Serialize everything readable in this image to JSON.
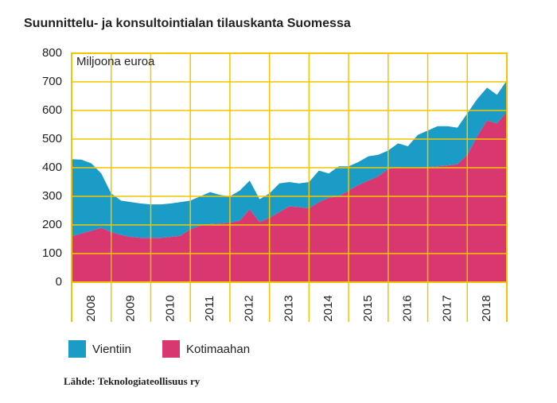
{
  "chart_data": {
    "type": "stacked-area",
    "title": "Suunnittelu- ja konsultointialan tilauskanta Suomessa",
    "y_label": "Miljoona euroa",
    "source": "Lähde: Teknologiateollisuus ry",
    "x": [
      2008,
      2008.25,
      2008.5,
      2008.75,
      2009,
      2009.25,
      2009.5,
      2009.75,
      2010,
      2010.25,
      2010.5,
      2010.75,
      2011,
      2011.25,
      2011.5,
      2011.75,
      2012,
      2012.25,
      2012.5,
      2012.75,
      2013,
      2013.25,
      2013.5,
      2013.75,
      2014,
      2014.25,
      2014.5,
      2014.75,
      2015,
      2015.25,
      2015.5,
      2015.75,
      2016,
      2016.25,
      2016.5,
      2016.75,
      2017,
      2017.25,
      2017.5,
      2017.75,
      2018,
      2018.25,
      2018.5,
      2018.75,
      2019
    ],
    "series": [
      {
        "name": "Vientiin",
        "color": "#1a9cc6",
        "values": [
          270,
          258,
          235,
          190,
          135,
          120,
          122,
          120,
          117,
          117,
          117,
          118,
          100,
          102,
          112,
          100,
          92,
          105,
          100,
          80,
          85,
          100,
          85,
          83,
          92,
          110,
          85,
          105,
          85,
          80,
          85,
          75,
          65,
          83,
          75,
          115,
          128,
          140,
          137,
          128,
          145,
          130,
          115,
          100,
          110
        ]
      },
      {
        "name": "Kotimaahan",
        "color": "#d8386f",
        "values": [
          160,
          170,
          180,
          190,
          175,
          165,
          158,
          155,
          155,
          155,
          158,
          162,
          185,
          198,
          203,
          205,
          208,
          215,
          255,
          210,
          225,
          245,
          265,
          262,
          258,
          280,
          295,
          300,
          320,
          340,
          355,
          370,
          395,
          402,
          400,
          400,
          402,
          405,
          408,
          412,
          445,
          510,
          565,
          555,
          595
        ]
      }
    ],
    "xlim": [
      2008,
      2019
    ],
    "xticks": [
      {
        "value": 2008.5,
        "label": "2008"
      },
      {
        "value": 2009.5,
        "label": "2009"
      },
      {
        "value": 2010.5,
        "label": "2010"
      },
      {
        "value": 2011.5,
        "label": "2011"
      },
      {
        "value": 2012.5,
        "label": "2012"
      },
      {
        "value": 2013.5,
        "label": "2013"
      },
      {
        "value": 2014.5,
        "label": "2014"
      },
      {
        "value": 2015.5,
        "label": "2015"
      },
      {
        "value": 2016.5,
        "label": "2016"
      },
      {
        "value": 2017.5,
        "label": "2017"
      },
      {
        "value": 2018.5,
        "label": "2018"
      }
    ],
    "ylim": [
      0,
      800
    ],
    "yticks": [
      0,
      100,
      200,
      300,
      400,
      500,
      600,
      700,
      800
    ],
    "grid": true,
    "grid_color": "#f2c500"
  }
}
